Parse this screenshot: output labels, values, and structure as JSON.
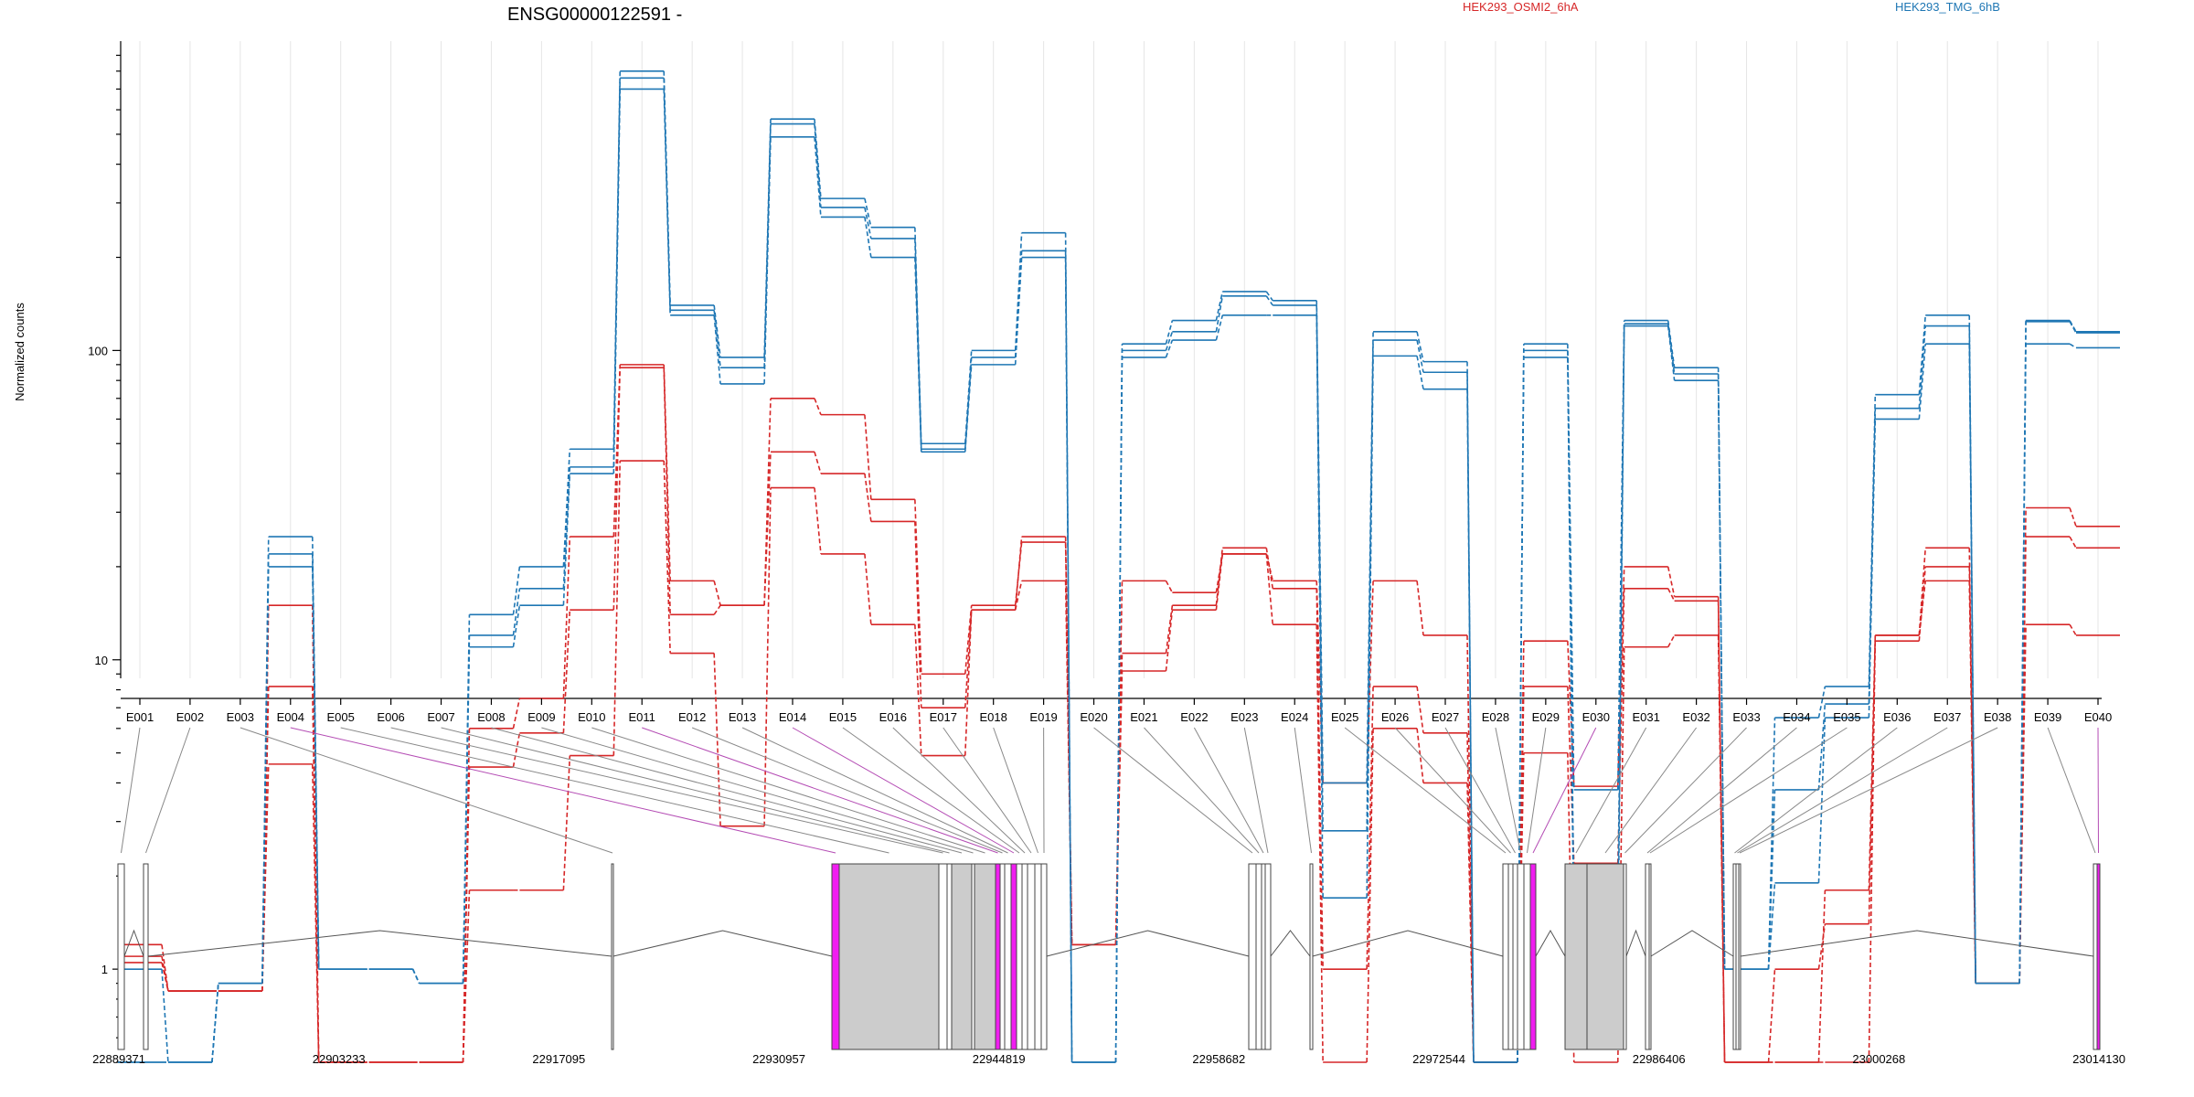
{
  "chart_data": {
    "type": "line",
    "title": "ENSG00000122591 -",
    "ylabel": "Normalized counts",
    "yscale": "log",
    "ylim": [
      0.5,
      1000
    ],
    "yticks": [
      "1",
      "10",
      "100"
    ],
    "yticks_values": [
      1,
      10,
      100
    ],
    "legend": [
      {
        "label": "HEK293_OSMI2_6hA",
        "color": "#d62728"
      },
      {
        "label": "HEK293_TMG_6hB",
        "color": "#1f77b4"
      }
    ],
    "categories": [
      "E001",
      "E002",
      "E003",
      "E004",
      "E005",
      "E006",
      "E007",
      "E008",
      "E009",
      "E010",
      "E011",
      "E012",
      "E013",
      "E014",
      "E015",
      "E016",
      "E017",
      "E018",
      "E019",
      "E020",
      "E021",
      "E022",
      "E023",
      "E024",
      "E025",
      "E026",
      "E027",
      "E028",
      "E029",
      "E030",
      "E031",
      "E032",
      "E033",
      "E034",
      "E035",
      "E036",
      "E037",
      "E038",
      "E039",
      "E040"
    ],
    "series": [
      {
        "group": "HEK293_OSMI2_6hA",
        "color": "#d62728",
        "values": [
          1.05,
          0.85,
          0.85,
          15,
          0.5,
          0.5,
          0.5,
          4.5,
          5.8,
          14.5,
          88,
          14,
          15,
          70,
          62,
          33,
          9,
          15,
          24,
          1.2,
          18,
          16.5,
          22,
          18,
          4,
          18,
          12,
          0.5,
          11.5,
          3.9,
          20,
          16,
          0.5,
          0.5,
          1.8,
          12,
          23,
          0.9,
          31,
          27
        ]
      },
      {
        "group": "HEK293_OSMI2_6hA",
        "color": "#d62728",
        "values": [
          1.1,
          0.85,
          0.85,
          8.2,
          0.5,
          0.5,
          0.5,
          6,
          7.5,
          25,
          90,
          18,
          15,
          47,
          40,
          28,
          7,
          14.5,
          25,
          1.2,
          10.5,
          15,
          23,
          17,
          1,
          8.2,
          5.8,
          0.5,
          8.2,
          2.2,
          17,
          15.5,
          0.5,
          1,
          1.4,
          11.5,
          20,
          0.9,
          25,
          23
        ]
      },
      {
        "group": "HEK293_OSMI2_6hA",
        "color": "#d62728",
        "values": [
          1.2,
          0.85,
          0.85,
          4.6,
          0.5,
          0.5,
          0.5,
          1.8,
          1.8,
          4.9,
          44,
          10.5,
          2.9,
          36,
          22,
          13,
          4.9,
          14.5,
          18,
          1.2,
          9.2,
          14.5,
          22,
          13,
          0.5,
          6,
          4,
          0.5,
          5,
          0.5,
          11,
          12,
          0.5,
          0.5,
          0.5,
          12,
          18,
          0.9,
          13,
          12
        ]
      },
      {
        "group": "HEK293_TMG_6hB",
        "color": "#1f77b4",
        "values": [
          1,
          0.5,
          0.9,
          25,
          1,
          1,
          0.9,
          14,
          20,
          48,
          800,
          140,
          95,
          560,
          310,
          250,
          50,
          100,
          240,
          0.5,
          105,
          125,
          155,
          145,
          4,
          115,
          92,
          0.5,
          105,
          3.8,
          125,
          88,
          1,
          6.5,
          8.2,
          72,
          130,
          0.9,
          125,
          115
        ]
      },
      {
        "group": "HEK293_TMG_6hB",
        "color": "#1f77b4",
        "values": [
          0.5,
          0.5,
          0.9,
          22,
          1,
          1,
          0.9,
          12,
          17,
          42,
          760,
          135,
          88,
          540,
          290,
          230,
          48,
          95,
          210,
          0.5,
          100,
          115,
          150,
          140,
          2.8,
          108,
          85,
          0.5,
          100,
          1.5,
          122,
          84,
          1,
          3.8,
          7.2,
          65,
          120,
          0.9,
          124,
          114
        ]
      },
      {
        "group": "HEK293_TMG_6hB",
        "color": "#1f77b4",
        "values": [
          0.5,
          0.5,
          0.9,
          20,
          1,
          1,
          0.9,
          11,
          15,
          40,
          700,
          130,
          78,
          490,
          270,
          200,
          47,
          90,
          200,
          0.5,
          95,
          108,
          130,
          130,
          1.7,
          96,
          75,
          0.5,
          95,
          1.05,
          120,
          80,
          1,
          1.9,
          6.5,
          60,
          105,
          0.9,
          105,
          102
        ]
      }
    ],
    "highlighted_exons": [
      "E004",
      "E011",
      "E014",
      "E030",
      "E040"
    ],
    "genomic_coords": [
      "22889371",
      "22903233",
      "22917095",
      "22930957",
      "22944819",
      "22958682",
      "22972544",
      "22986406",
      "23000268",
      "23014130"
    ]
  }
}
